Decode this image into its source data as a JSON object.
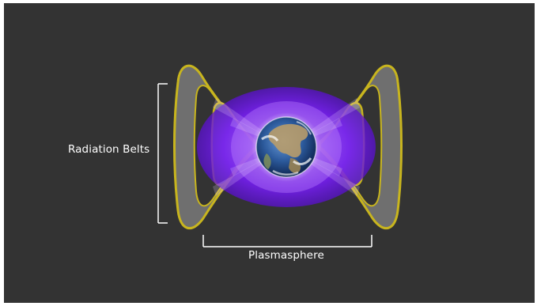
{
  "labels": {
    "radiation_belts": "Radiation Belts",
    "plasmasphere": "Plasmasphere"
  },
  "colors": {
    "background": "#333333",
    "belt_fill": "#6f6f6f",
    "belt_outline": "#c8b51e",
    "plasmasphere": "#7a1cff",
    "bracket": "#ffffff"
  }
}
